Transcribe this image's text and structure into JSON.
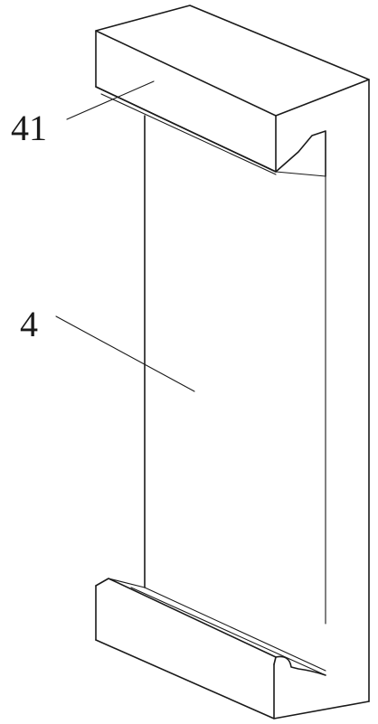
{
  "figure": {
    "labels": [
      {
        "id": "top-flange",
        "text": "41"
      },
      {
        "id": "main-plate",
        "text": "4"
      }
    ]
  }
}
